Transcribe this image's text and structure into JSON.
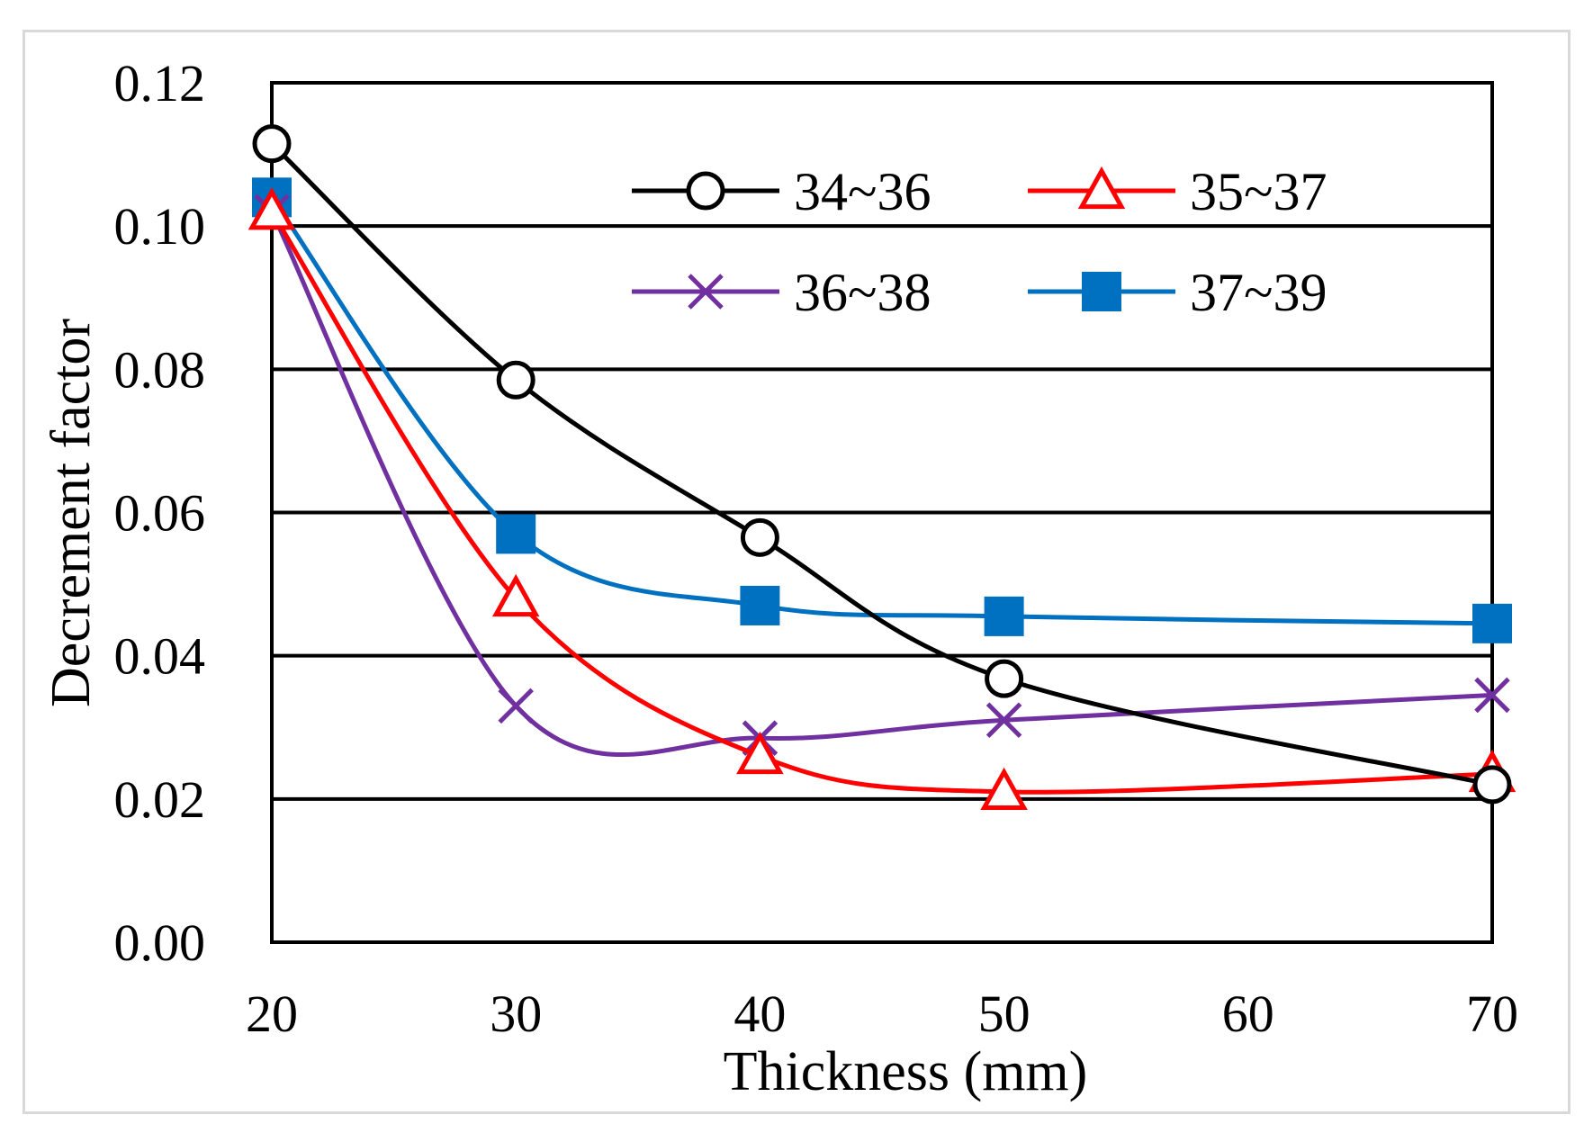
{
  "chart_data": {
    "type": "line",
    "title": "",
    "xlabel": "Thickness (mm)",
    "ylabel": "Decrement factor",
    "xlim": [
      20,
      70
    ],
    "ylim": [
      0.0,
      0.12
    ],
    "xticks": [
      20,
      30,
      40,
      50,
      60,
      70
    ],
    "xtick_labels": [
      "20",
      "30",
      "40",
      "50",
      "60",
      "70"
    ],
    "yticks": [
      0.0,
      0.02,
      0.04,
      0.06,
      0.08,
      0.1,
      0.12
    ],
    "ytick_labels": [
      "0.00",
      "0.02",
      "0.04",
      "0.06",
      "0.08",
      "0.10",
      "0.12"
    ],
    "grid": "horizontal",
    "legend_position": "top-right",
    "x": [
      20,
      30,
      40,
      50,
      70
    ],
    "series": [
      {
        "name": "34~36",
        "color": "#000000",
        "marker": "circle-open",
        "values": [
          0.1115,
          0.0785,
          0.0565,
          0.0368,
          0.022
        ]
      },
      {
        "name": "35~37",
        "color": "#ff0000",
        "marker": "triangle-open",
        "values": [
          0.102,
          0.048,
          0.026,
          0.021,
          0.0235
        ]
      },
      {
        "name": "36~38",
        "color": "#7030a0",
        "marker": "x",
        "values": [
          0.102,
          0.033,
          0.0285,
          0.031,
          0.0345
        ]
      },
      {
        "name": "37~39",
        "color": "#0070c0",
        "marker": "square-filled",
        "values": [
          0.104,
          0.057,
          0.047,
          0.0455,
          0.0445
        ]
      }
    ]
  }
}
